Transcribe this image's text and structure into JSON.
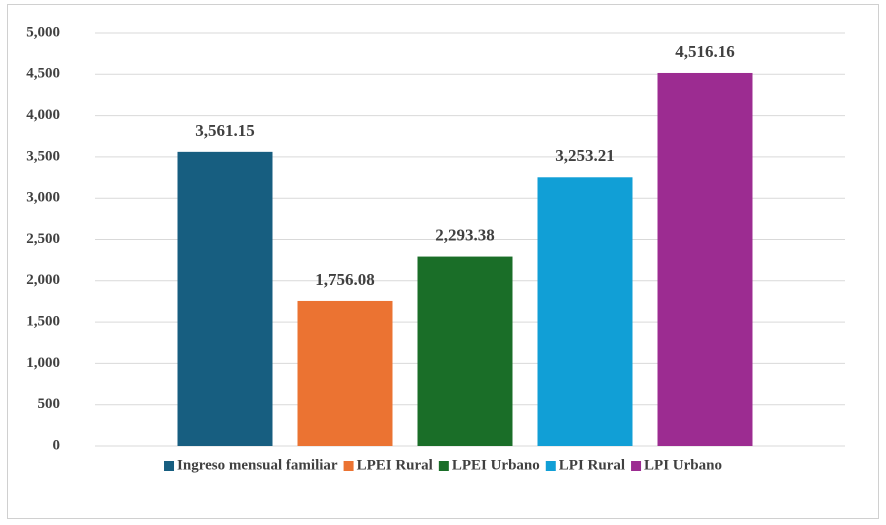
{
  "chart_data": {
    "type": "bar",
    "series": [
      {
        "name": "Ingreso mensual familiar",
        "color": "#175e80",
        "values": [
          3561.15
        ],
        "value_labels": [
          "3,561.15"
        ]
      },
      {
        "name": "LPEI Rural",
        "color": "#eb7332",
        "values": [
          1756.08
        ],
        "value_labels": [
          "1,756.08"
        ]
      },
      {
        "name": "LPEI Urbano",
        "color": "#1a6e28",
        "values": [
          2293.38
        ],
        "value_labels": [
          "2,293.38"
        ]
      },
      {
        "name": "LPI Rural",
        "color": "#119fd6",
        "values": [
          3253.21
        ],
        "value_labels": [
          "3,253.21"
        ]
      },
      {
        "name": "LPI Urbano",
        "color": "#9c2c91",
        "values": [
          4516.16
        ],
        "value_labels": [
          "4,516.16"
        ]
      }
    ],
    "ylim": [
      0,
      5000
    ],
    "yticks": [
      0,
      500,
      {
        "value": 1000,
        "label": "1,000"
      },
      {
        "value": 1500,
        "label": "1,500"
      },
      {
        "value": 2000,
        "label": "2,000"
      },
      {
        "value": 2500,
        "label": "2,500"
      },
      {
        "value": 3000,
        "label": "3,000"
      },
      {
        "value": 3500,
        "label": "3,500"
      },
      {
        "value": 4000,
        "label": "4,000"
      },
      {
        "value": 4500,
        "label": "4,500"
      },
      {
        "value": 5000,
        "label": "5,000"
      }
    ],
    "grid": true,
    "legend": "bottom"
  }
}
